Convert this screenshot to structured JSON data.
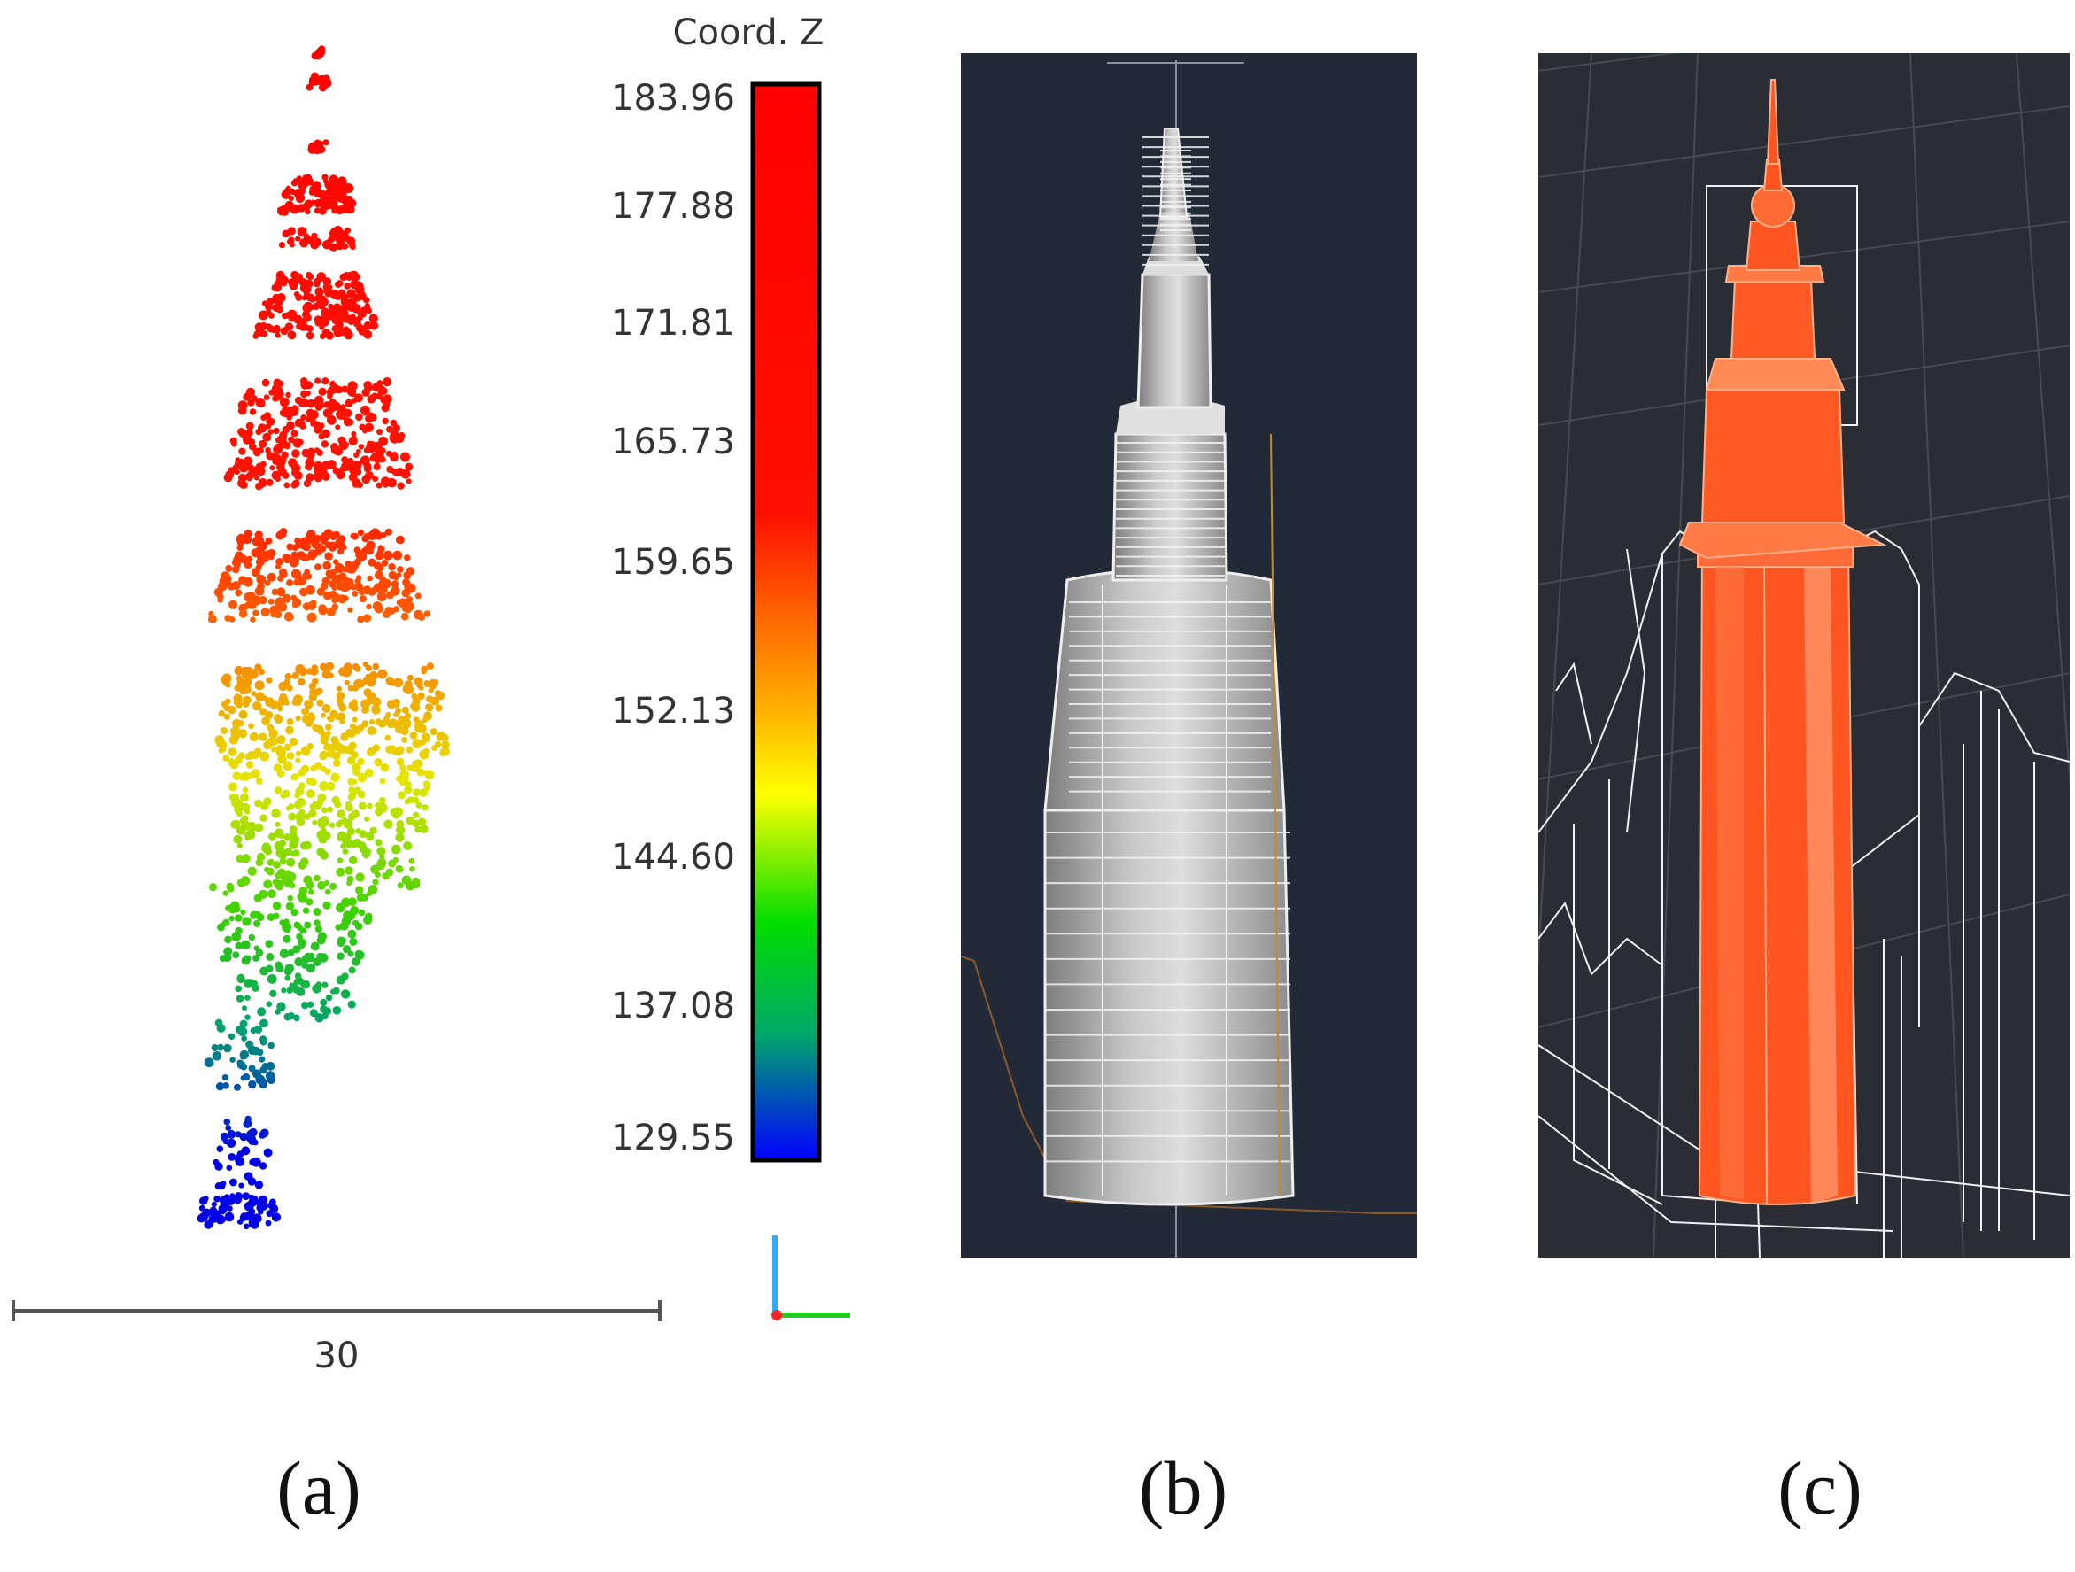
{
  "panel_a": {
    "colorbar": {
      "title": "Coord. Z",
      "ticks": [
        "183.96",
        "177.88",
        "171.81",
        "165.73",
        "159.65",
        "152.13",
        "144.60",
        "137.08",
        "129.55"
      ],
      "colors": [
        "#ff0000",
        "#ff1a00",
        "#ff6600",
        "#ffcc00",
        "#ffff00",
        "#00dd00",
        "#009977",
        "#0000ff"
      ]
    },
    "scale_bar_value": "30"
  },
  "panel_b": {
    "background": "#232a37"
  },
  "panel_c": {
    "background": "#2a2d33",
    "accent": "#ff5522"
  },
  "labels": [
    "(a)",
    "(b)",
    "(c)"
  ]
}
